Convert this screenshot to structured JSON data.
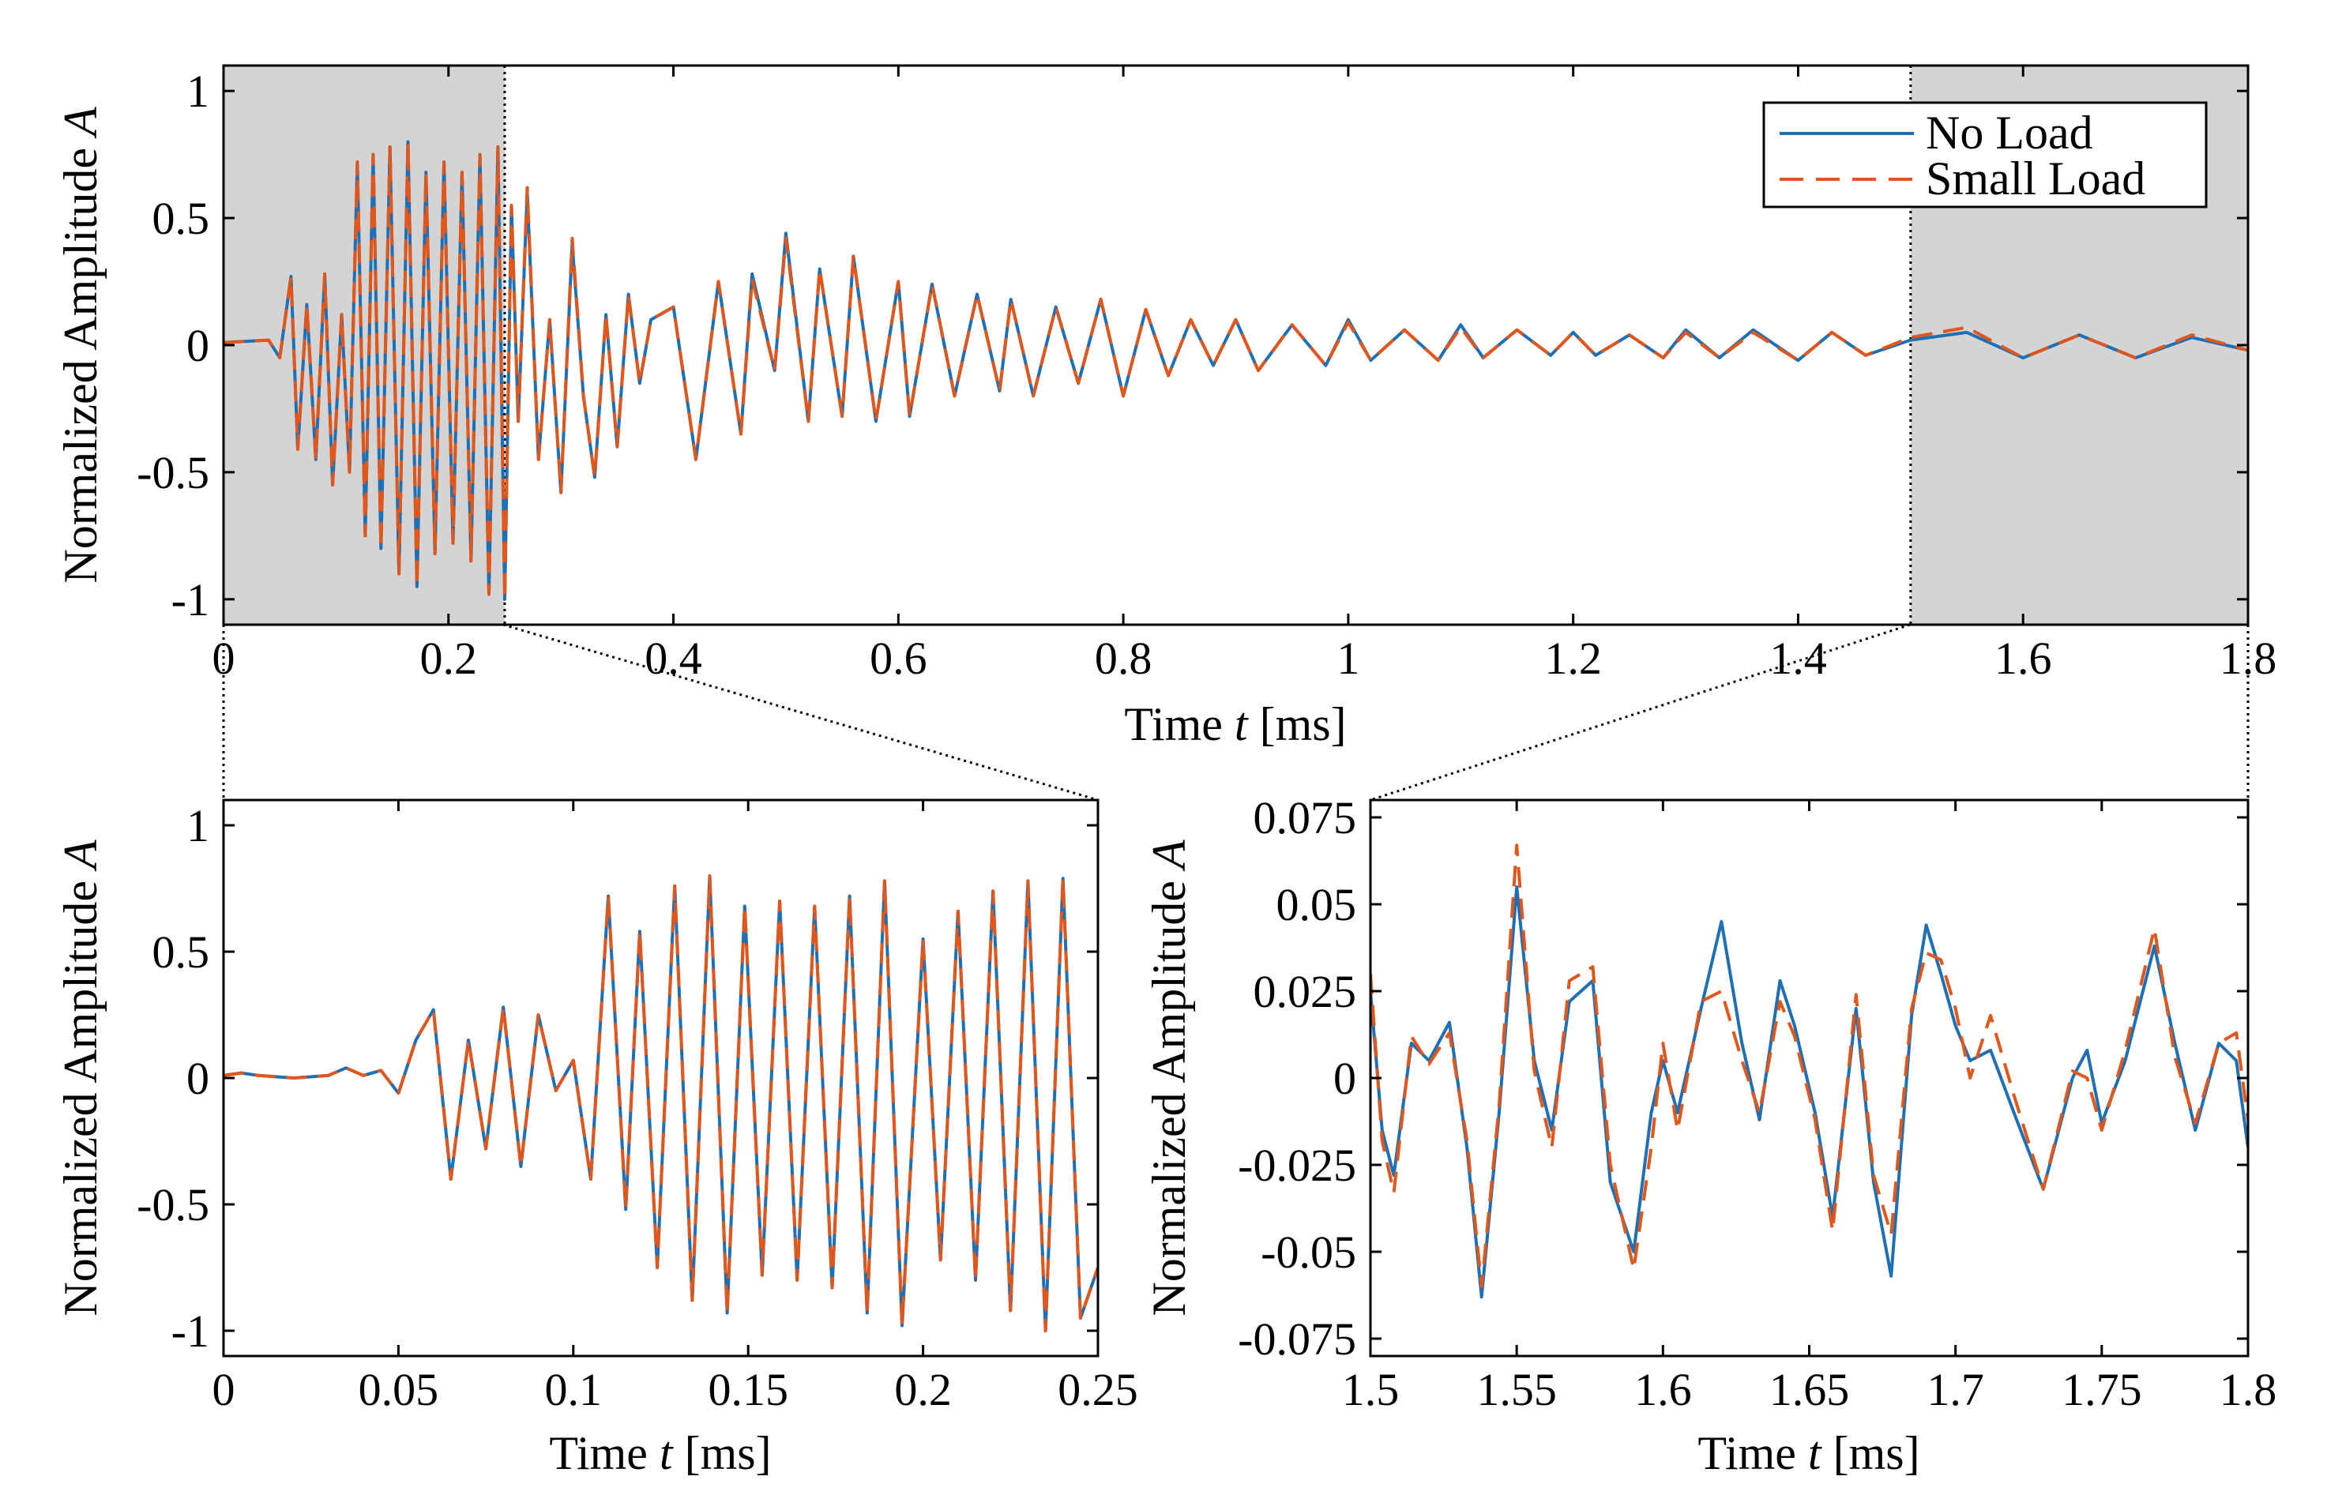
{
  "colors": {
    "no_load": "#1f6fb5",
    "small_load": "#e0561b",
    "shade": "#d4d4d4"
  },
  "chart_data": [
    {
      "id": "overview",
      "type": "line",
      "xlabel_pre": "Time ",
      "xlabel_var": "t",
      "xlabel_post": " [ms]",
      "ylabel_pre": "Normalized Amplitude ",
      "ylabel_var": "A",
      "xlim": [
        0,
        1.8
      ],
      "ylim": [
        -1.1,
        1.1
      ],
      "xticks": [
        0,
        0.2,
        0.4,
        0.6,
        0.8,
        1.0,
        1.2,
        1.4,
        1.6,
        1.8
      ],
      "xtick_labels": [
        "0",
        "0.2",
        "0.4",
        "0.6",
        "0.8",
        "1",
        "1.2",
        "1.4",
        "1.6",
        "1.8"
      ],
      "yticks": [
        1,
        0.5,
        0,
        -0.5,
        -1
      ],
      "ytick_labels": [
        "1",
        "0.5",
        "0",
        "-0.5",
        "-1"
      ],
      "shaded_ranges": [
        [
          0,
          0.25
        ],
        [
          1.5,
          1.8
        ]
      ],
      "legend": {
        "position": "top-right",
        "entries": [
          "No Load",
          "Small Load"
        ]
      },
      "series": [
        {
          "name": "No Load",
          "style": "solid",
          "x": [
            0,
            0.04,
            0.05,
            0.06,
            0.066,
            0.074,
            0.082,
            0.09,
            0.097,
            0.105,
            0.112,
            0.119,
            0.126,
            0.133,
            0.14,
            0.148,
            0.156,
            0.164,
            0.172,
            0.18,
            0.188,
            0.196,
            0.204,
            0.212,
            0.22,
            0.228,
            0.236,
            0.244,
            0.25,
            0.256,
            0.262,
            0.27,
            0.28,
            0.29,
            0.3,
            0.31,
            0.32,
            0.33,
            0.34,
            0.35,
            0.36,
            0.37,
            0.38,
            0.4,
            0.42,
            0.44,
            0.46,
            0.47,
            0.49,
            0.5,
            0.52,
            0.53,
            0.55,
            0.56,
            0.58,
            0.6,
            0.61,
            0.63,
            0.65,
            0.67,
            0.69,
            0.7,
            0.72,
            0.74,
            0.76,
            0.78,
            0.8,
            0.82,
            0.84,
            0.86,
            0.88,
            0.9,
            0.92,
            0.95,
            0.98,
            1.0,
            1.02,
            1.05,
            1.08,
            1.1,
            1.12,
            1.15,
            1.18,
            1.2,
            1.22,
            1.25,
            1.28,
            1.3,
            1.33,
            1.36,
            1.4,
            1.43,
            1.46,
            1.5,
            1.55,
            1.6,
            1.65,
            1.7,
            1.75,
            1.8
          ],
          "y": [
            0.01,
            0.02,
            -0.05,
            0.27,
            -0.41,
            0.16,
            -0.45,
            0.28,
            -0.55,
            0.12,
            -0.5,
            0.72,
            -0.75,
            0.75,
            -0.8,
            0.78,
            -0.9,
            0.8,
            -0.95,
            0.68,
            -0.82,
            0.72,
            -0.78,
            0.68,
            -0.85,
            0.75,
            -0.98,
            0.78,
            -1.0,
            0.55,
            -0.3,
            0.6,
            -0.45,
            0.1,
            -0.58,
            0.4,
            -0.2,
            -0.52,
            0.12,
            -0.4,
            0.2,
            -0.15,
            0.1,
            0.15,
            -0.45,
            0.25,
            -0.35,
            0.28,
            -0.1,
            0.44,
            -0.3,
            0.3,
            -0.28,
            0.35,
            -0.3,
            0.25,
            -0.28,
            0.24,
            -0.2,
            0.2,
            -0.18,
            0.18,
            -0.2,
            0.15,
            -0.15,
            0.18,
            -0.2,
            0.14,
            -0.12,
            0.1,
            -0.08,
            0.1,
            -0.1,
            0.08,
            -0.08,
            0.1,
            -0.06,
            0.06,
            -0.06,
            0.08,
            -0.05,
            0.06,
            -0.04,
            0.05,
            -0.04,
            0.04,
            -0.05,
            0.06,
            -0.05,
            0.06,
            -0.06,
            0.05,
            -0.04,
            0.02,
            0.05,
            -0.05,
            0.04,
            -0.05,
            0.03,
            -0.02
          ]
        },
        {
          "name": "Small Load",
          "style": "dashed",
          "x": [
            0,
            0.04,
            0.05,
            0.06,
            0.066,
            0.074,
            0.082,
            0.09,
            0.097,
            0.105,
            0.112,
            0.119,
            0.126,
            0.133,
            0.14,
            0.148,
            0.156,
            0.164,
            0.172,
            0.18,
            0.188,
            0.196,
            0.204,
            0.212,
            0.22,
            0.228,
            0.236,
            0.244,
            0.25,
            0.256,
            0.262,
            0.27,
            0.28,
            0.29,
            0.3,
            0.31,
            0.32,
            0.33,
            0.34,
            0.35,
            0.36,
            0.37,
            0.38,
            0.4,
            0.42,
            0.44,
            0.46,
            0.47,
            0.49,
            0.5,
            0.52,
            0.53,
            0.55,
            0.56,
            0.58,
            0.6,
            0.61,
            0.63,
            0.65,
            0.67,
            0.69,
            0.7,
            0.72,
            0.74,
            0.76,
            0.78,
            0.8,
            0.82,
            0.84,
            0.86,
            0.88,
            0.9,
            0.92,
            0.95,
            0.98,
            1.0,
            1.02,
            1.05,
            1.08,
            1.1,
            1.12,
            1.15,
            1.18,
            1.2,
            1.22,
            1.25,
            1.28,
            1.3,
            1.33,
            1.36,
            1.4,
            1.43,
            1.46,
            1.5,
            1.55,
            1.6,
            1.65,
            1.7,
            1.75,
            1.8
          ],
          "y": [
            0.01,
            0.02,
            -0.05,
            0.27,
            -0.41,
            0.16,
            -0.45,
            0.28,
            -0.55,
            0.12,
            -0.5,
            0.72,
            -0.75,
            0.75,
            -0.8,
            0.78,
            -0.9,
            0.8,
            -0.95,
            0.68,
            -0.82,
            0.72,
            -0.78,
            0.68,
            -0.85,
            0.75,
            -0.98,
            0.78,
            -1.0,
            0.55,
            -0.3,
            0.62,
            -0.45,
            0.1,
            -0.58,
            0.42,
            -0.2,
            -0.52,
            0.12,
            -0.4,
            0.2,
            -0.15,
            0.1,
            0.15,
            -0.45,
            0.25,
            -0.35,
            0.26,
            -0.1,
            0.42,
            -0.3,
            0.3,
            -0.28,
            0.35,
            -0.3,
            0.25,
            -0.28,
            0.24,
            -0.2,
            0.2,
            -0.18,
            0.18,
            -0.2,
            0.15,
            -0.15,
            0.18,
            -0.2,
            0.14,
            -0.12,
            0.1,
            -0.08,
            0.1,
            -0.1,
            0.08,
            -0.08,
            0.09,
            -0.06,
            0.06,
            -0.06,
            0.07,
            -0.05,
            0.06,
            -0.04,
            0.05,
            -0.04,
            0.04,
            -0.05,
            0.05,
            -0.05,
            0.05,
            -0.06,
            0.05,
            -0.04,
            0.03,
            0.07,
            -0.05,
            0.04,
            -0.05,
            0.04,
            -0.02
          ]
        }
      ]
    },
    {
      "id": "zoom-start",
      "type": "line",
      "xlabel_pre": "Time ",
      "xlabel_var": "t",
      "xlabel_post": " [ms]",
      "ylabel_pre": "Normalized Amplitude ",
      "ylabel_var": "A",
      "xlim": [
        0,
        0.25
      ],
      "ylim": [
        -1.1,
        1.1
      ],
      "xticks": [
        0,
        0.05,
        0.1,
        0.15,
        0.2,
        0.25
      ],
      "xtick_labels": [
        "0",
        "0.05",
        "0.1",
        "0.15",
        "0.2",
        "0.25"
      ],
      "yticks": [
        1,
        0.5,
        0,
        -0.5,
        -1
      ],
      "ytick_labels": [
        "1",
        "0.5",
        "0",
        "-0.5",
        "-1"
      ],
      "series": [
        {
          "name": "No Load",
          "style": "solid",
          "x": [
            0,
            0.005,
            0.01,
            0.02,
            0.03,
            0.035,
            0.04,
            0.045,
            0.05,
            0.055,
            0.06,
            0.065,
            0.07,
            0.075,
            0.08,
            0.085,
            0.09,
            0.095,
            0.1,
            0.105,
            0.11,
            0.115,
            0.119,
            0.124,
            0.129,
            0.134,
            0.139,
            0.144,
            0.149,
            0.154,
            0.159,
            0.164,
            0.169,
            0.174,
            0.179,
            0.184,
            0.189,
            0.194,
            0.2,
            0.205,
            0.21,
            0.215,
            0.22,
            0.225,
            0.23,
            0.235,
            0.24,
            0.245,
            0.25
          ],
          "y": [
            0.01,
            0.02,
            0.01,
            0.0,
            0.01,
            0.04,
            0.01,
            0.03,
            -0.06,
            0.15,
            0.27,
            -0.4,
            0.15,
            -0.28,
            0.28,
            -0.35,
            0.25,
            -0.05,
            0.07,
            -0.4,
            0.72,
            -0.52,
            0.58,
            -0.75,
            0.76,
            -0.88,
            0.8,
            -0.93,
            0.68,
            -0.78,
            0.7,
            -0.8,
            0.68,
            -0.83,
            0.72,
            -0.93,
            0.78,
            -0.98,
            0.55,
            -0.72,
            0.66,
            -0.8,
            0.74,
            -0.92,
            0.78,
            -1.0,
            0.79,
            -0.95,
            -0.75
          ]
        },
        {
          "name": "Small Load",
          "style": "dashed",
          "x": [
            0,
            0.005,
            0.01,
            0.02,
            0.03,
            0.035,
            0.04,
            0.045,
            0.05,
            0.055,
            0.06,
            0.065,
            0.07,
            0.075,
            0.08,
            0.085,
            0.09,
            0.095,
            0.1,
            0.105,
            0.11,
            0.115,
            0.119,
            0.124,
            0.129,
            0.134,
            0.139,
            0.144,
            0.149,
            0.154,
            0.159,
            0.164,
            0.169,
            0.174,
            0.179,
            0.184,
            0.189,
            0.194,
            0.2,
            0.205,
            0.21,
            0.215,
            0.22,
            0.225,
            0.23,
            0.235,
            0.24,
            0.245,
            0.25
          ],
          "y": [
            0.01,
            0.02,
            0.01,
            0.0,
            0.01,
            0.04,
            0.01,
            0.03,
            -0.06,
            0.15,
            0.27,
            -0.4,
            0.15,
            -0.28,
            0.28,
            -0.35,
            0.25,
            -0.05,
            0.07,
            -0.4,
            0.72,
            -0.52,
            0.58,
            -0.75,
            0.76,
            -0.88,
            0.8,
            -0.93,
            0.68,
            -0.78,
            0.7,
            -0.8,
            0.68,
            -0.83,
            0.72,
            -0.93,
            0.78,
            -0.98,
            0.55,
            -0.72,
            0.66,
            -0.8,
            0.74,
            -0.92,
            0.78,
            -1.0,
            0.79,
            -0.95,
            -0.75
          ]
        }
      ]
    },
    {
      "id": "zoom-end",
      "type": "line",
      "xlabel_pre": "Time ",
      "xlabel_var": "t",
      "xlabel_post": " [ms]",
      "ylabel_pre": "Normalized Amplitude ",
      "ylabel_var": "A",
      "xlim": [
        1.5,
        1.8
      ],
      "ylim": [
        -0.08,
        0.08
      ],
      "xticks": [
        1.5,
        1.55,
        1.6,
        1.65,
        1.7,
        1.75,
        1.8
      ],
      "xtick_labels": [
        "1.5",
        "1.55",
        "1.6",
        "1.65",
        "1.7",
        "1.75",
        "1.8"
      ],
      "yticks": [
        0.075,
        0.05,
        0.025,
        0,
        -0.025,
        -0.05,
        -0.075
      ],
      "ytick_labels": [
        "0.075",
        "0.05",
        "0.025",
        "0",
        "-0.025",
        "-0.05",
        "-0.075"
      ],
      "series": [
        {
          "name": "No Load",
          "style": "solid",
          "x": [
            1.5,
            1.504,
            1.508,
            1.514,
            1.52,
            1.527,
            1.533,
            1.538,
            1.544,
            1.55,
            1.556,
            1.562,
            1.568,
            1.576,
            1.582,
            1.59,
            1.596,
            1.6,
            1.605,
            1.613,
            1.62,
            1.627,
            1.633,
            1.64,
            1.645,
            1.652,
            1.658,
            1.666,
            1.672,
            1.678,
            1.685,
            1.69,
            1.695,
            1.7,
            1.705,
            1.712,
            1.72,
            1.73,
            1.74,
            1.745,
            1.75,
            1.758,
            1.768,
            1.775,
            1.782,
            1.79,
            1.796,
            1.8
          ],
          "y": [
            0.025,
            -0.015,
            -0.028,
            0.01,
            0.005,
            0.016,
            -0.02,
            -0.063,
            -0.01,
            0.055,
            0.005,
            -0.015,
            0.022,
            0.028,
            -0.03,
            -0.05,
            -0.01,
            0.005,
            -0.01,
            0.02,
            0.045,
            0.01,
            -0.012,
            0.028,
            0.015,
            -0.01,
            -0.04,
            0.02,
            -0.03,
            -0.057,
            0.018,
            0.044,
            0.03,
            0.015,
            0.005,
            0.008,
            -0.01,
            -0.032,
            0.0,
            0.008,
            -0.013,
            0.005,
            0.038,
            0.01,
            -0.015,
            0.01,
            0.005,
            -0.02
          ]
        },
        {
          "name": "Small Load",
          "style": "dashed",
          "x": [
            1.5,
            1.504,
            1.508,
            1.514,
            1.52,
            1.527,
            1.533,
            1.538,
            1.544,
            1.55,
            1.556,
            1.562,
            1.568,
            1.576,
            1.582,
            1.59,
            1.596,
            1.6,
            1.605,
            1.613,
            1.62,
            1.627,
            1.633,
            1.64,
            1.645,
            1.652,
            1.658,
            1.666,
            1.672,
            1.678,
            1.685,
            1.69,
            1.695,
            1.7,
            1.705,
            1.712,
            1.72,
            1.73,
            1.74,
            1.745,
            1.75,
            1.758,
            1.768,
            1.775,
            1.782,
            1.79,
            1.796,
            1.8
          ],
          "y": [
            0.03,
            -0.018,
            -0.033,
            0.012,
            0.004,
            0.013,
            -0.018,
            -0.06,
            -0.008,
            0.067,
            0.002,
            -0.02,
            0.028,
            0.032,
            -0.025,
            -0.055,
            -0.02,
            0.01,
            -0.015,
            0.022,
            0.025,
            0.005,
            -0.01,
            0.022,
            0.012,
            -0.012,
            -0.044,
            0.024,
            -0.028,
            -0.045,
            0.02,
            0.036,
            0.034,
            0.02,
            0.0,
            0.018,
            -0.005,
            -0.032,
            0.002,
            0.0,
            -0.015,
            0.008,
            0.043,
            0.006,
            -0.013,
            0.01,
            0.013,
            -0.012
          ]
        }
      ]
    }
  ]
}
